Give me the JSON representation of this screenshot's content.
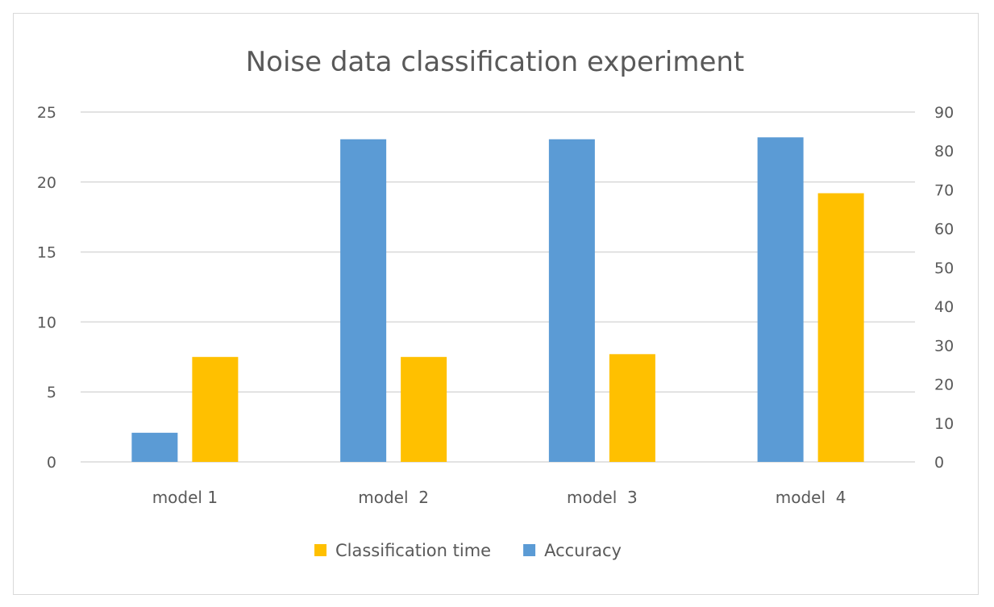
{
  "chart_data": {
    "type": "bar",
    "title": "Noise data classification experiment",
    "categories": [
      "model 1",
      "model  2",
      "model  3",
      "model  4"
    ],
    "series": [
      {
        "name": "Accuracy",
        "axis": "right",
        "color": "#5b9bd5",
        "values": [
          7.5,
          83,
          83,
          83.5
        ]
      },
      {
        "name": "Classification time",
        "axis": "left",
        "color": "#ffc000",
        "values": [
          7.5,
          7.5,
          7.7,
          19.2
        ]
      }
    ],
    "y_left": {
      "min": 0,
      "max": 25,
      "ticks": [
        0,
        5,
        10,
        15,
        20,
        25
      ]
    },
    "y_right": {
      "min": 0,
      "max": 90,
      "ticks": [
        0,
        10,
        20,
        30,
        40,
        50,
        60,
        70,
        80,
        90
      ]
    },
    "legend": {
      "position": "bottom",
      "items": [
        {
          "label": "Classification time",
          "color": "#ffc000"
        },
        {
          "label": "Accuracy",
          "color": "#5b9bd5"
        }
      ]
    },
    "grid": true
  }
}
